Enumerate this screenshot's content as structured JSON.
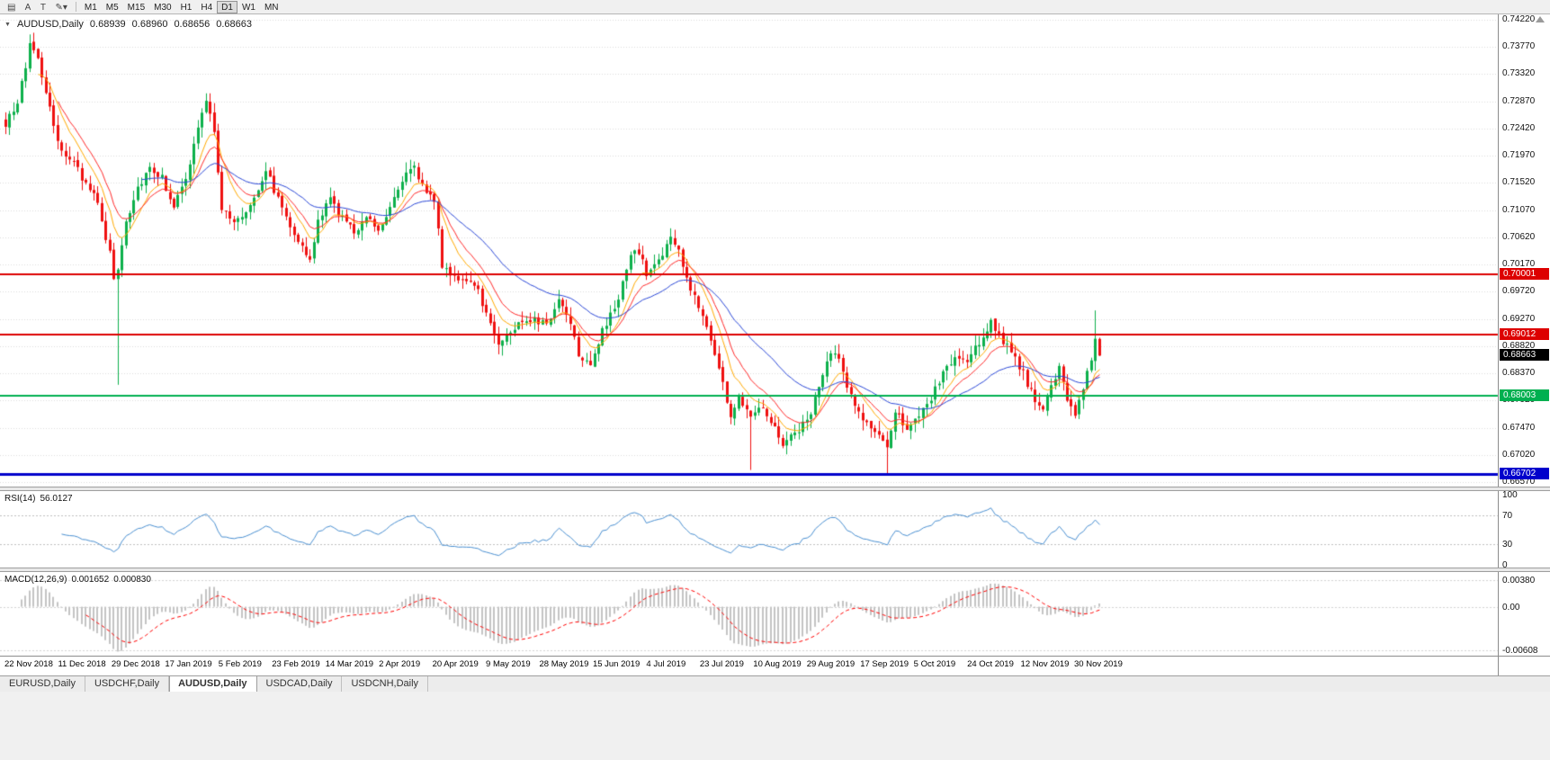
{
  "toolbar": {
    "icons": [
      {
        "name": "charts-grid-icon",
        "glyph": "▤"
      },
      {
        "name": "text-label-tool-button",
        "glyph": "A"
      },
      {
        "name": "type-tool-button",
        "glyph": "T"
      },
      {
        "name": "draw-tools-dropdown",
        "glyph": "✎▾"
      }
    ],
    "timeframes": [
      "M1",
      "M5",
      "M15",
      "M30",
      "H1",
      "H4",
      "D1",
      "W1",
      "MN"
    ],
    "active_timeframe": "D1"
  },
  "chart": {
    "title": "AUDUSD,Daily",
    "open": "0.68939",
    "high": "0.68960",
    "low": "0.68656",
    "close": "0.68663",
    "current_price_tag": "0.68663",
    "price_axis_ticks": [
      "0.74220",
      "0.73770",
      "0.73320",
      "0.72870",
      "0.72420",
      "0.71970",
      "0.71520",
      "0.71070",
      "0.70620",
      "0.70170",
      "0.69720",
      "0.69270",
      "0.68820",
      "0.68370",
      "0.67920",
      "0.67470",
      "0.67020",
      "0.66570"
    ],
    "level_tags": [
      {
        "label": "0.70001",
        "price": 0.70001,
        "color": "#dd0000",
        "width": 2
      },
      {
        "label": "0.69012",
        "price": 0.69012,
        "color": "#dd0000",
        "width": 2
      },
      {
        "label": "0.68003",
        "price": 0.68003,
        "color": "#00b050",
        "width": 2
      },
      {
        "label": "0.66702",
        "price": 0.66702,
        "color": "#0000cc",
        "width": 3
      }
    ]
  },
  "rsi_panel": {
    "name": "RSI(14)",
    "value": "56.0127",
    "axis": [
      {
        "label": "100",
        "v": 100
      },
      {
        "label": "70",
        "v": 70
      },
      {
        "label": "30",
        "v": 30
      },
      {
        "label": "0",
        "v": 0
      }
    ]
  },
  "macd_panel": {
    "name": "MACD(12,26,9)",
    "value_main": "0.001652",
    "value_signal": "0.000830",
    "axis": [
      {
        "label": "0.00380",
        "v": 0.0038
      },
      {
        "label": "0.00",
        "v": 0
      },
      {
        "label": "-0.00608",
        "v": -0.00608
      }
    ]
  },
  "date_axis": [
    "22 Nov 2018",
    "11 Dec 2018",
    "29 Dec 2018",
    "17 Jan 2019",
    "5 Feb 2019",
    "23 Feb 2019",
    "14 Mar 2019",
    "2 Apr 2019",
    "20 Apr 2019",
    "9 May 2019",
    "28 May 2019",
    "15 Jun 2019",
    "4 Jul 2019",
    "23 Jul 2019",
    "10 Aug 2019",
    "29 Aug 2019",
    "17 Sep 2019",
    "5 Oct 2019",
    "24 Oct 2019",
    "12 Nov 2019",
    "30 Nov 2019"
  ],
  "tabs": [
    "EURUSD,Daily",
    "USDCHF,Daily",
    "AUDUSD,Daily",
    "USDCAD,Daily",
    "USDCNH,Daily"
  ],
  "active_tab": "AUDUSD,Daily",
  "colors": {
    "bull": "#0db04b",
    "bear": "#ef1010",
    "ma_fast": "#ffaa00",
    "ma_mid": "#ff2a2a",
    "ma_slow": "#2b48d8",
    "rsi": "#4a90d2",
    "macd_hist": "#c4c4c4",
    "macd_signal": "#ff0000",
    "grid": "#dcdcdc"
  },
  "chart_data": {
    "type": "candlestick",
    "symbol": "AUDUSD",
    "timeframe": "Daily",
    "price_range": {
      "top": 0.7422,
      "bottom": 0.6657
    },
    "candle_count": 274,
    "close_anchors": [
      [
        0,
        0.7245
      ],
      [
        3,
        0.729
      ],
      [
        5,
        0.734
      ],
      [
        6,
        0.7385
      ],
      [
        8,
        0.736
      ],
      [
        10,
        0.73
      ],
      [
        13,
        0.7215
      ],
      [
        16,
        0.7195
      ],
      [
        19,
        0.716
      ],
      [
        22,
        0.714
      ],
      [
        24,
        0.7085
      ],
      [
        26,
        0.7035
      ],
      [
        27,
        0.6995
      ],
      [
        28,
        0.701
      ],
      [
        30,
        0.709
      ],
      [
        33,
        0.7145
      ],
      [
        36,
        0.718
      ],
      [
        39,
        0.716
      ],
      [
        42,
        0.7115
      ],
      [
        45,
        0.7155
      ],
      [
        48,
        0.7245
      ],
      [
        50,
        0.7285
      ],
      [
        52,
        0.724
      ],
      [
        54,
        0.711
      ],
      [
        57,
        0.7085
      ],
      [
        60,
        0.7105
      ],
      [
        63,
        0.7145
      ],
      [
        65,
        0.7175
      ],
      [
        68,
        0.7125
      ],
      [
        71,
        0.7085
      ],
      [
        74,
        0.7045
      ],
      [
        76,
        0.702
      ],
      [
        78,
        0.709
      ],
      [
        81,
        0.7125
      ],
      [
        84,
        0.7095
      ],
      [
        87,
        0.707
      ],
      [
        90,
        0.71
      ],
      [
        93,
        0.7075
      ],
      [
        96,
        0.7115
      ],
      [
        99,
        0.716
      ],
      [
        102,
        0.7175
      ],
      [
        104,
        0.715
      ],
      [
        107,
        0.7125
      ],
      [
        109,
        0.7015
      ],
      [
        112,
        0.7
      ],
      [
        115,
        0.6985
      ],
      [
        118,
        0.6975
      ],
      [
        120,
        0.6935
      ],
      [
        123,
        0.689
      ],
      [
        126,
        0.6905
      ],
      [
        129,
        0.6925
      ],
      [
        132,
        0.693
      ],
      [
        135,
        0.6915
      ],
      [
        138,
        0.696
      ],
      [
        141,
        0.6925
      ],
      [
        143,
        0.687
      ],
      [
        146,
        0.6855
      ],
      [
        149,
        0.6905
      ],
      [
        152,
        0.6945
      ],
      [
        154,
        0.6985
      ],
      [
        156,
        0.703
      ],
      [
        158,
        0.704
      ],
      [
        160,
        0.7
      ],
      [
        163,
        0.7025
      ],
      [
        166,
        0.706
      ],
      [
        168,
        0.704
      ],
      [
        170,
        0.699
      ],
      [
        173,
        0.695
      ],
      [
        176,
        0.6895
      ],
      [
        179,
        0.682
      ],
      [
        181,
        0.6765
      ],
      [
        183,
        0.6795
      ],
      [
        186,
        0.6772
      ],
      [
        189,
        0.6785
      ],
      [
        192,
        0.6745
      ],
      [
        194,
        0.6722
      ],
      [
        197,
        0.6738
      ],
      [
        200,
        0.6758
      ],
      [
        203,
        0.6812
      ],
      [
        206,
        0.6872
      ],
      [
        208,
        0.6858
      ],
      [
        211,
        0.68
      ],
      [
        214,
        0.6758
      ],
      [
        217,
        0.6742
      ],
      [
        220,
        0.6708
      ],
      [
        222,
        0.6778
      ],
      [
        225,
        0.6748
      ],
      [
        228,
        0.6762
      ],
      [
        231,
        0.6795
      ],
      [
        234,
        0.6838
      ],
      [
        237,
        0.6862
      ],
      [
        240,
        0.6855
      ],
      [
        243,
        0.6888
      ],
      [
        246,
        0.6922
      ],
      [
        248,
        0.6902
      ],
      [
        251,
        0.6868
      ],
      [
        254,
        0.6838
      ],
      [
        257,
        0.6788
      ],
      [
        259,
        0.6772
      ],
      [
        261,
        0.682
      ],
      [
        263,
        0.6843
      ],
      [
        265,
        0.6795
      ],
      [
        267,
        0.6772
      ],
      [
        269,
        0.6815
      ],
      [
        271,
        0.6862
      ],
      [
        272,
        0.6893
      ],
      [
        273,
        0.68663
      ]
    ],
    "special_wicks": [
      {
        "i": 28,
        "low": 0.6818
      },
      {
        "i": 186,
        "low": 0.6677
      },
      {
        "i": 220,
        "low": 0.667
      },
      {
        "i": 272,
        "high": 0.6941
      }
    ],
    "last_candle": {
      "open": 0.68939,
      "high": 0.6896,
      "low": 0.68656,
      "close": 0.68663
    },
    "moving_averages": [
      {
        "period": 8,
        "color_key": "ma_fast"
      },
      {
        "period": 13,
        "color_key": "ma_mid"
      },
      {
        "period": 34,
        "color_key": "ma_slow"
      }
    ],
    "levels": [
      0.70001,
      0.69012,
      0.68003,
      0.66702
    ],
    "rsi": {
      "period": 14,
      "levels": [
        70,
        30
      ],
      "range": [
        0,
        100
      ],
      "current": 56.0127
    },
    "macd": {
      "fast": 12,
      "slow": 26,
      "signal": 9,
      "axis_top": 0.0038,
      "axis_bottom": -0.00608,
      "current_main": 0.001652,
      "current_signal": 0.00083
    }
  }
}
